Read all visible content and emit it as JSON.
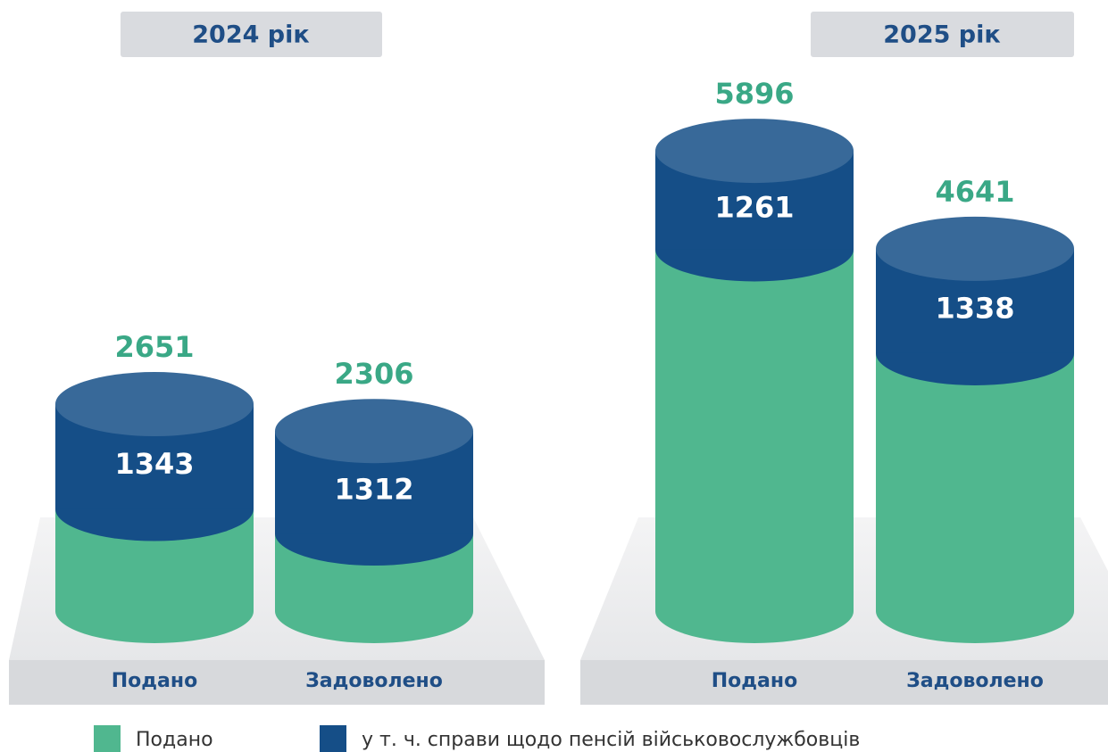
{
  "chart_data": [
    {
      "type": "cylinder",
      "title": "2024 рік",
      "categories": [
        "Подано",
        "Задоволено"
      ],
      "series": [
        {
          "color": "#50b78f",
          "values": [
            2651,
            2306
          ]
        },
        {
          "color": "#154e87",
          "values": [
            1343,
            1312
          ]
        }
      ]
    },
    {
      "type": "cylinder",
      "title": "2025 рік",
      "categories": [
        "Подано",
        "Задоволено"
      ],
      "series": [
        {
          "color": "#50b78f",
          "values": [
            5896,
            4641
          ]
        },
        {
          "color": "#154e87",
          "values": [
            1261,
            1338
          ]
        }
      ]
    }
  ],
  "legend": [
    {
      "name": "Подано",
      "color": "#50b78f"
    },
    {
      "name": "у т. ч. справи щодо пенсій військовослужбовців",
      "color": "#154e87"
    }
  ]
}
